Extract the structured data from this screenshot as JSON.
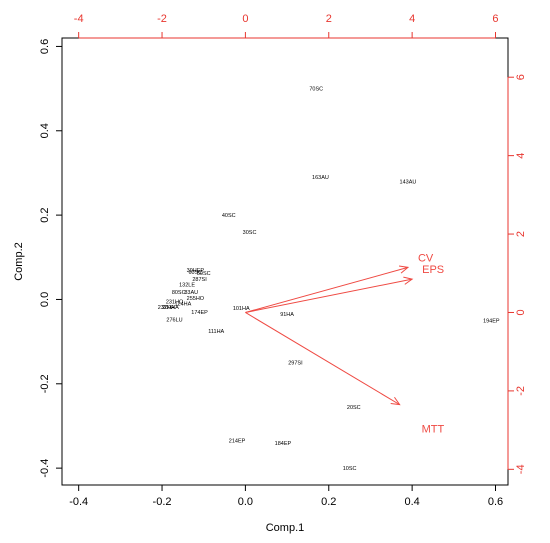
{
  "chart_data": {
    "type": "scatter",
    "subtype": "biplot",
    "xlabel": "Comp.1",
    "ylabel": "Comp.2",
    "xlim": [
      -0.44,
      0.63
    ],
    "ylim": [
      -0.44,
      0.62
    ],
    "x_ticks": [
      -0.4,
      -0.2,
      0.0,
      0.2,
      0.4,
      0.6
    ],
    "y_ticks": [
      -0.4,
      -0.2,
      0.0,
      0.2,
      0.4,
      0.6
    ],
    "x_tick_labels": [
      "-0.4",
      "-0.2",
      "0.0",
      "0.2",
      "0.4",
      "0.6"
    ],
    "y_tick_labels": [
      "-0.4",
      "-0.2",
      "0.0",
      "0.2",
      "0.4",
      "0.6"
    ],
    "top_axis_ticks": [
      -4,
      -2,
      0,
      2,
      4,
      6
    ],
    "top_axis_labels": [
      "-4",
      "-2",
      "0",
      "2",
      "4",
      "6"
    ],
    "top_axis_lim": [
      -4.4,
      6.3
    ],
    "right_axis_ticks": [
      -4,
      -2,
      0,
      2,
      4,
      6
    ],
    "right_axis_labels": [
      "-4",
      "-2",
      "0",
      "2",
      "4",
      "6"
    ],
    "right_axis_lim": [
      -4.4,
      7.0
    ],
    "grid": false,
    "accent_color": "#ef4a43",
    "points": [
      {
        "label": "70SC",
        "x": 0.17,
        "y": 0.5
      },
      {
        "label": "163AU",
        "x": 0.18,
        "y": 0.29
      },
      {
        "label": "143AU",
        "x": 0.39,
        "y": 0.28
      },
      {
        "label": "40SC",
        "x": -0.04,
        "y": 0.2
      },
      {
        "label": "30SC",
        "x": 0.01,
        "y": 0.16
      },
      {
        "label": "39HEP",
        "x": -0.12,
        "y": 0.07
      },
      {
        "label": "60SC",
        "x": -0.12,
        "y": 0.065
      },
      {
        "label": "50SC",
        "x": -0.1,
        "y": 0.063
      },
      {
        "label": "287SI",
        "x": -0.11,
        "y": 0.048
      },
      {
        "label": "132LE",
        "x": -0.14,
        "y": 0.035
      },
      {
        "label": "80SC",
        "x": -0.16,
        "y": 0.018
      },
      {
        "label": "83AU",
        "x": -0.13,
        "y": 0.018
      },
      {
        "label": "255HO",
        "x": -0.12,
        "y": 0.003
      },
      {
        "label": "231HO",
        "x": -0.17,
        "y": -0.005
      },
      {
        "label": "124HA",
        "x": -0.15,
        "y": -0.01
      },
      {
        "label": "200HA",
        "x": -0.18,
        "y": -0.018
      },
      {
        "label": "232HA",
        "x": -0.19,
        "y": -0.018
      },
      {
        "label": "174EP",
        "x": -0.11,
        "y": -0.03
      },
      {
        "label": "276LU",
        "x": -0.17,
        "y": -0.048
      },
      {
        "label": "101HA",
        "x": -0.01,
        "y": -0.02
      },
      {
        "label": "111HA",
        "x": -0.07,
        "y": -0.075
      },
      {
        "label": "91HA",
        "x": 0.1,
        "y": -0.035
      },
      {
        "label": "194EP",
        "x": 0.59,
        "y": -0.05
      },
      {
        "label": "297SI",
        "x": 0.12,
        "y": -0.15
      },
      {
        "label": "20SC",
        "x": 0.26,
        "y": -0.255
      },
      {
        "label": "214EP",
        "x": -0.02,
        "y": -0.335
      },
      {
        "label": "184EP",
        "x": 0.09,
        "y": -0.34
      },
      {
        "label": "10SC",
        "x": 0.25,
        "y": -0.4
      }
    ],
    "loadings": [
      {
        "name": "CV",
        "x": 3.9,
        "y": 1.15,
        "label": "CV"
      },
      {
        "name": "EPS",
        "x": 4.0,
        "y": 0.85,
        "label": "EPS"
      },
      {
        "name": "MTT",
        "x": 3.7,
        "y": -2.35,
        "label": "MTT"
      }
    ]
  }
}
